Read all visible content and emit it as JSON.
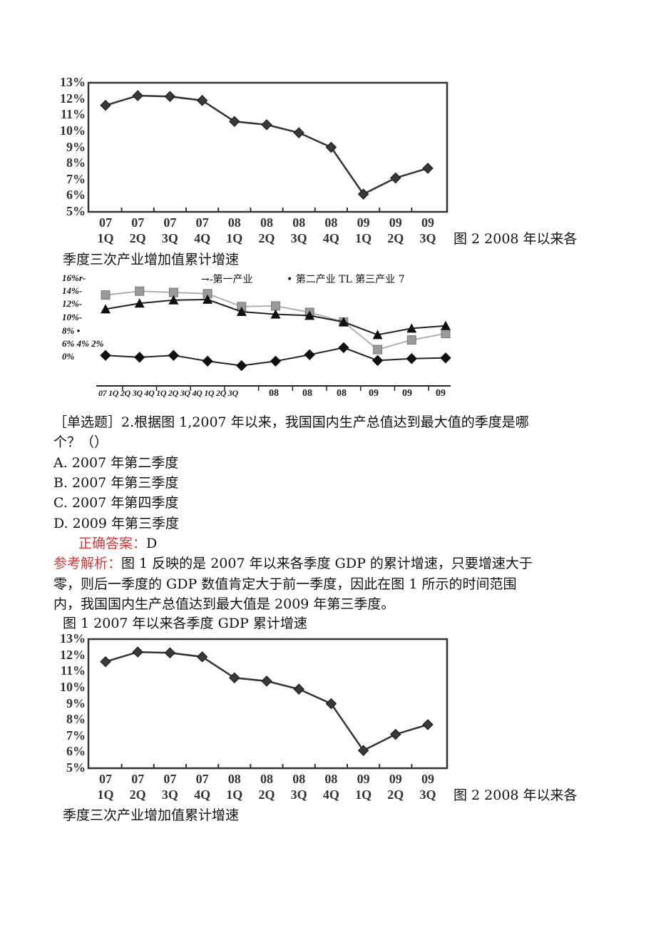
{
  "caption_fig2_line1": "图 2   2008 年以来各",
  "caption_fig2_line2": "季度三次产业增加值累计增速",
  "question": {
    "line1": "［单选题］2.根据图 1,2007 年以来，我国国内生产总值达到最大值的季度是哪",
    "line2": "个？（）",
    "options": [
      "A. 2007 年第二季度",
      "B. 2007 年第三季度",
      "C. 2007 年第四季度",
      "D. 2009 年第三季度"
    ],
    "answer_label": "正确答案：",
    "answer_value": "D",
    "analysis_label": "参考解析：",
    "analysis_line1": "图 1 反映的是 2007 年以来各季度 GDP 的累计增速，只要增速大于",
    "analysis_line2": "零，则后一季度的 GDP 数值肯定大于前一季度，因此在图 1 所示的时间范围",
    "analysis_line3": "内，我国国内生产总值达到最大值是 2009 年第三季度。",
    "fig1_caption": "图 1   2007 年以来各季度 GDP 累计增速"
  },
  "colors": {
    "line": "#333333",
    "marker": "#3a3a3a",
    "gray_series": "#9a9a9a",
    "answer_red": "#d23a3a"
  },
  "chart_data": [
    {
      "type": "line",
      "marker": "diamond",
      "categories": [
        "07 1Q",
        "07 2Q",
        "07 3Q",
        "07 4Q",
        "08 1Q",
        "08 2Q",
        "08 3Q",
        "08 4Q",
        "09 1Q",
        "09 2Q",
        "09 3Q"
      ],
      "x_tick_labels": [
        [
          "07",
          "1Q"
        ],
        [
          "07",
          "2Q"
        ],
        [
          "07",
          "3Q"
        ],
        [
          "07",
          "4Q"
        ],
        [
          "08",
          "1Q"
        ],
        [
          "08",
          "2Q"
        ],
        [
          "08",
          "3Q"
        ],
        [
          "08",
          "4Q"
        ],
        [
          "09",
          "1Q"
        ],
        [
          "09",
          "2Q"
        ],
        [
          "09",
          "3Q"
        ]
      ],
      "y_tick_labels": [
        "5%",
        "6%",
        "7%",
        "8%",
        "9%",
        "10%",
        "11%",
        "12%",
        "13%"
      ],
      "ylim": [
        5,
        13
      ],
      "values": [
        11.6,
        12.2,
        12.15,
        11.9,
        10.6,
        10.4,
        9.9,
        9.0,
        6.1,
        7.1,
        7.7
      ],
      "grid": false
    },
    {
      "type": "line",
      "legend": [
        "→-第一产业",
        "• 第二产业 TL 第三产业 7"
      ],
      "legend_position": "top",
      "y_tick_labels": [
        "16%r-",
        "14%-",
        "12%-",
        "10%-",
        "8% •",
        "6% 4% 2%",
        "0%"
      ],
      "x_tick_label_run": "07 1Q 2Q 3Q 4Q 1Q 2Q 3Q 4Q 1Q 2Q 3Q",
      "x_tick_labels_tail": [
        "08",
        "08",
        "08",
        "09",
        "09",
        "09"
      ],
      "ylim": [
        0,
        16
      ],
      "series": [
        {
          "marker": "square",
          "color": "#9a9a9a",
          "values": [
            13.6,
            14.2,
            14.0,
            13.8,
            11.8,
            11.9,
            10.9,
            9.4,
            5.1,
            6.6,
            7.6
          ]
        },
        {
          "marker": "triangle",
          "color": "#111111",
          "values": [
            11.4,
            12.3,
            12.8,
            12.9,
            11.0,
            10.6,
            10.4,
            9.4,
            7.4,
            8.4,
            8.8
          ]
        },
        {
          "marker": "diamond",
          "color": "#111111",
          "values": [
            4.2,
            3.9,
            4.2,
            3.3,
            2.6,
            3.3,
            4.3,
            5.4,
            3.4,
            3.7,
            3.8
          ]
        }
      ],
      "grid": false
    },
    {
      "type": "line",
      "marker": "diamond",
      "categories": [
        "07 1Q",
        "07 2Q",
        "07 3Q",
        "07 4Q",
        "08 1Q",
        "08 2Q",
        "08 3Q",
        "08 4Q",
        "09 1Q",
        "09 2Q",
        "09 3Q"
      ],
      "x_tick_labels": [
        [
          "07",
          "1Q"
        ],
        [
          "07",
          "2Q"
        ],
        [
          "07",
          "3Q"
        ],
        [
          "07",
          "4Q"
        ],
        [
          "08",
          "1Q"
        ],
        [
          "08",
          "2Q"
        ],
        [
          "08",
          "3Q"
        ],
        [
          "08",
          "4Q"
        ],
        [
          "09",
          "1Q"
        ],
        [
          "09",
          "2Q"
        ],
        [
          "09",
          "3Q"
        ]
      ],
      "y_tick_labels": [
        "5%",
        "6%",
        "7%",
        "8%",
        "9%",
        "10%",
        "11%",
        "12%",
        "13%"
      ],
      "ylim": [
        5,
        13
      ],
      "values": [
        11.6,
        12.2,
        12.15,
        11.9,
        10.6,
        10.4,
        9.9,
        9.0,
        6.1,
        7.1,
        7.7
      ],
      "grid": false
    }
  ]
}
